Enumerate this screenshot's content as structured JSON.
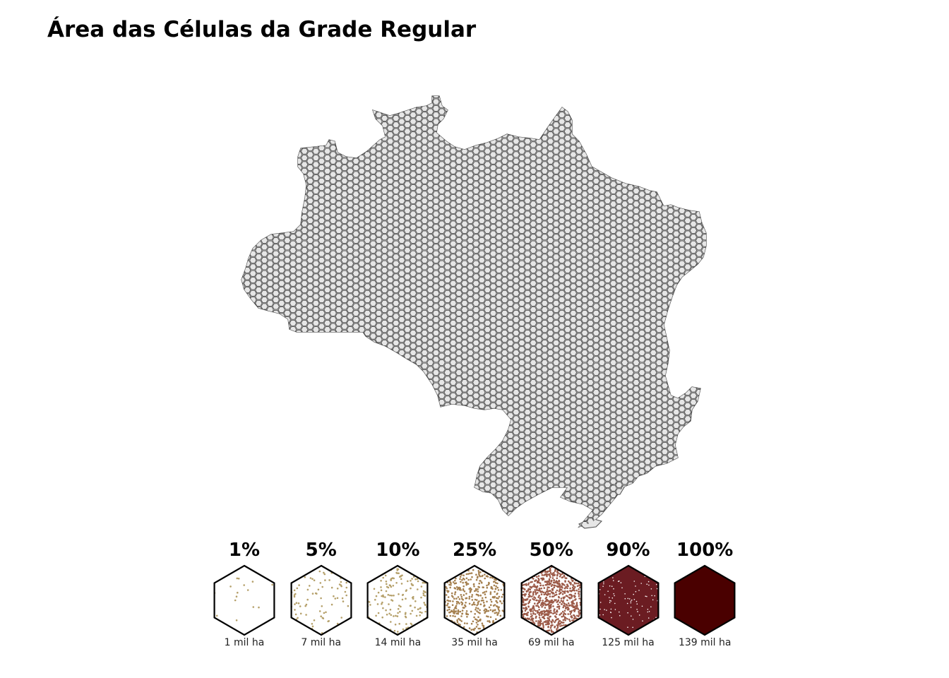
{
  "title": "Área das Células da Grade Regular",
  "map": {
    "region_fill": "#e6e6e6",
    "region_stroke": "#555555",
    "cell_fill": "#e6e6e6",
    "cell_stroke": "#444444"
  },
  "legend": [
    {
      "percent": "1%",
      "area": "1 mil ha",
      "fraction": 0.01,
      "dot_color": "#b5a06a",
      "bg_color": "#ffffff"
    },
    {
      "percent": "5%",
      "area": "7 mil ha",
      "fraction": 0.05,
      "dot_color": "#b5a06a",
      "bg_color": "#ffffff"
    },
    {
      "percent": "10%",
      "area": "14 mil ha",
      "fraction": 0.1,
      "dot_color": "#b5a06a",
      "bg_color": "#ffffff"
    },
    {
      "percent": "25%",
      "area": "35 mil ha",
      "fraction": 0.25,
      "dot_color": "#a5804f",
      "bg_color": "#ffffff"
    },
    {
      "percent": "50%",
      "area": "69 mil ha",
      "fraction": 0.5,
      "dot_color": "#9c5a48",
      "bg_color": "#ffffff"
    },
    {
      "percent": "90%",
      "area": "125 mil ha",
      "fraction": 0.9,
      "dot_color": "#ffffff",
      "bg_color": "#6b1c22"
    },
    {
      "percent": "100%",
      "area": "139 mil ha",
      "fraction": 1.0,
      "dot_color": "#4a0000",
      "bg_color": "#4a0000"
    }
  ]
}
